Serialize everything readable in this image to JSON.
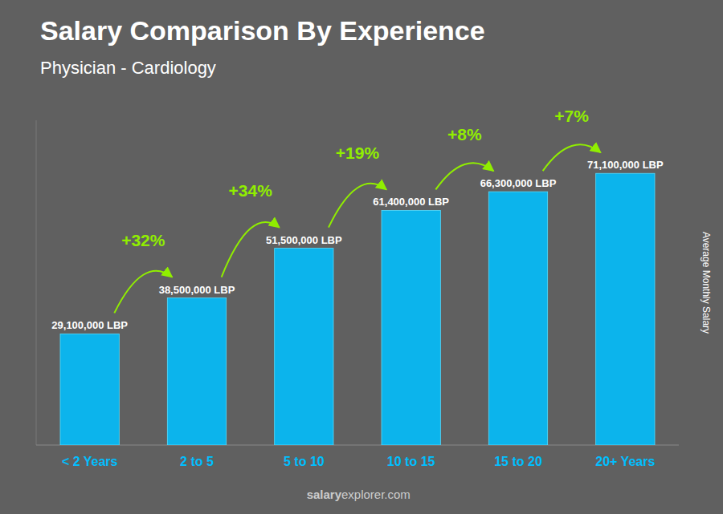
{
  "chart_data": {
    "type": "bar",
    "title": "Salary Comparison By Experience",
    "subtitle": "Physician - Cardiology",
    "ylabel": "Average Monthly Salary",
    "categories": [
      "< 2 Years",
      "2 to 5",
      "5 to 10",
      "10 to 15",
      "15 to 20",
      "20+ Years"
    ],
    "values": [
      29100000,
      38500000,
      51500000,
      61400000,
      66300000,
      71100000
    ],
    "value_labels": [
      "29,100,000 LBP",
      "38,500,000 LBP",
      "51,500,000 LBP",
      "61,400,000 LBP",
      "66,300,000 LBP",
      "71,100,000 LBP"
    ],
    "data_labels": true,
    "color": "#00BFFF",
    "ylim": [
      0,
      85000000
    ],
    "tick_labels": "x",
    "grid": false,
    "annotations": [
      {
        "text": "+32%",
        "color": "#90EE00"
      },
      {
        "text": "+34%",
        "color": "#90EE00"
      },
      {
        "text": "+19%",
        "color": "#90EE00"
      },
      {
        "text": "+8%",
        "color": "#90EE00"
      },
      {
        "text": "+7%",
        "color": "#90EE00"
      }
    ],
    "footer": [
      "salary",
      "explorer.com"
    ]
  }
}
